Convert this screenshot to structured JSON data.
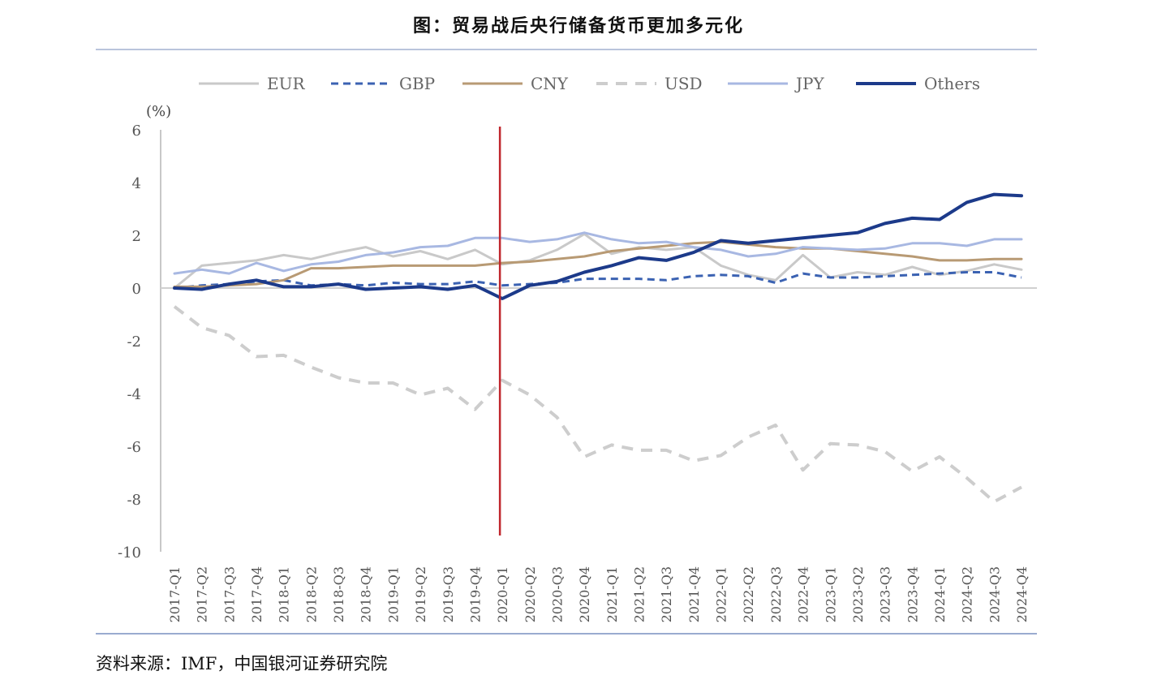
{
  "title": "图：贸易战后央行储备货币更加多元化",
  "source": "资料来源：IMF，中国银河证券研究院",
  "chart_data": {
    "type": "line",
    "ylabel": "(%)",
    "ylim": [
      -10,
      6
    ],
    "yticks": [
      6,
      4,
      2,
      0,
      -2,
      -4,
      -6,
      -8,
      -10
    ],
    "legend_position": "top",
    "grid": false,
    "vertical_marker": "2020-Q1",
    "marker_color": "#c0272d",
    "categories": [
      "2017-Q1",
      "2017-Q2",
      "2017-Q3",
      "2017-Q4",
      "2018-Q1",
      "2018-Q2",
      "2018-Q3",
      "2018-Q4",
      "2019-Q1",
      "2019-Q2",
      "2019-Q3",
      "2019-Q4",
      "2020-Q1",
      "2020-Q2",
      "2020-Q3",
      "2020-Q4",
      "2021-Q1",
      "2021-Q2",
      "2021-Q3",
      "2021-Q4",
      "2022-Q1",
      "2022-Q2",
      "2022-Q3",
      "2022-Q4",
      "2023-Q1",
      "2023-Q2",
      "2023-Q3",
      "2023-Q4",
      "2024-Q1",
      "2024-Q2",
      "2024-Q3",
      "2024-Q4"
    ],
    "series": [
      {
        "name": "EUR",
        "color": "#c9c9c9",
        "dash": "solid",
        "width": 3,
        "values": [
          0.0,
          0.85,
          0.95,
          1.05,
          1.25,
          1.1,
          1.35,
          1.55,
          1.2,
          1.4,
          1.1,
          1.45,
          0.9,
          1.05,
          1.45,
          2.05,
          1.3,
          1.55,
          1.45,
          1.55,
          0.85,
          0.5,
          0.3,
          1.25,
          0.4,
          0.6,
          0.5,
          0.8,
          0.5,
          0.65,
          0.9,
          0.7
        ]
      },
      {
        "name": "GBP",
        "color": "#3b62b2",
        "dash": "dashed",
        "width": 3,
        "values": [
          0.0,
          0.1,
          0.15,
          0.25,
          0.3,
          0.1,
          0.15,
          0.1,
          0.2,
          0.15,
          0.15,
          0.25,
          0.1,
          0.15,
          0.2,
          0.35,
          0.35,
          0.35,
          0.3,
          0.45,
          0.5,
          0.45,
          0.2,
          0.55,
          0.4,
          0.4,
          0.45,
          0.5,
          0.55,
          0.6,
          0.6,
          0.4
        ]
      },
      {
        "name": "CNY",
        "color": "#b89a74",
        "dash": "solid",
        "width": 3,
        "values": [
          0.05,
          0.05,
          0.1,
          0.15,
          0.3,
          0.75,
          0.75,
          0.8,
          0.85,
          0.85,
          0.85,
          0.85,
          0.95,
          1.0,
          1.1,
          1.2,
          1.4,
          1.5,
          1.6,
          1.7,
          1.75,
          1.65,
          1.55,
          1.5,
          1.5,
          1.4,
          1.3,
          1.2,
          1.05,
          1.05,
          1.1,
          1.1
        ]
      },
      {
        "name": "USD",
        "color": "#cdcdcd",
        "dash": "dashed",
        "width": 4,
        "values": [
          -0.7,
          -1.5,
          -1.8,
          -2.6,
          -2.55,
          -3.0,
          -3.4,
          -3.6,
          -3.6,
          -4.05,
          -3.8,
          -4.6,
          -3.5,
          -4.05,
          -4.9,
          -6.4,
          -5.95,
          -6.15,
          -6.15,
          -6.55,
          -6.35,
          -5.65,
          -5.2,
          -6.9,
          -5.9,
          -5.95,
          -6.2,
          -6.95,
          -6.4,
          -7.2,
          -8.1,
          -7.55
        ]
      },
      {
        "name": "JPY",
        "color": "#a8b8e2",
        "dash": "solid",
        "width": 3,
        "values": [
          0.55,
          0.7,
          0.55,
          0.95,
          0.65,
          0.9,
          1.0,
          1.25,
          1.35,
          1.55,
          1.6,
          1.9,
          1.9,
          1.75,
          1.85,
          2.1,
          1.85,
          1.7,
          1.75,
          1.55,
          1.45,
          1.2,
          1.3,
          1.55,
          1.5,
          1.45,
          1.5,
          1.7,
          1.7,
          1.6,
          1.85,
          1.85
        ]
      },
      {
        "name": "Others",
        "color": "#1c3a8a",
        "dash": "solid",
        "width": 4,
        "values": [
          0.0,
          -0.05,
          0.15,
          0.3,
          0.05,
          0.05,
          0.15,
          -0.05,
          0.0,
          0.05,
          -0.05,
          0.1,
          -0.4,
          0.1,
          0.25,
          0.6,
          0.85,
          1.15,
          1.05,
          1.35,
          1.8,
          1.7,
          1.8,
          1.9,
          2.0,
          2.1,
          2.45,
          2.65,
          2.6,
          3.25,
          3.55,
          3.5
        ]
      }
    ]
  }
}
